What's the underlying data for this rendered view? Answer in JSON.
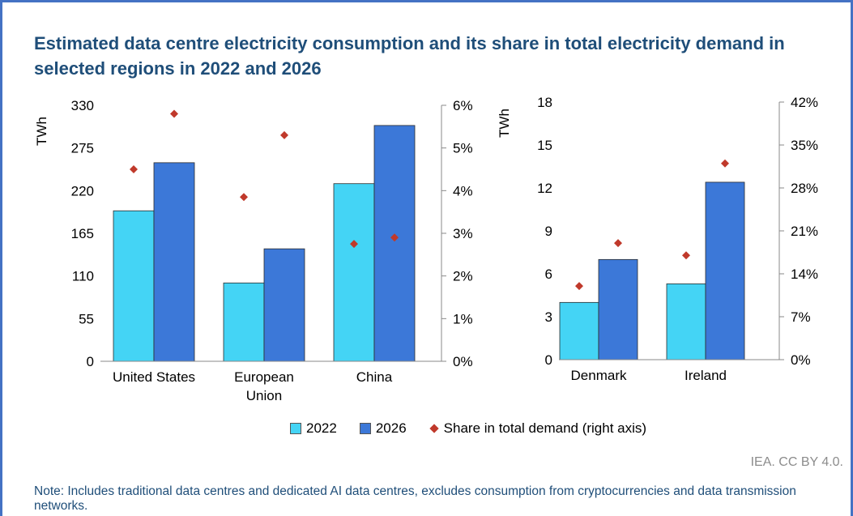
{
  "title": "Estimated data centre electricity consumption and its share in total electricity demand in selected regions in 2022 and 2026",
  "colors": {
    "y2022": "#44d4f5",
    "y2026": "#3c78d8",
    "share": "#c0392b",
    "title": "#1f4e79",
    "frame": "#4472c4"
  },
  "legend": {
    "item_2022": "2022",
    "item_2026": "2026",
    "item_share": "Share in total demand (right axis)"
  },
  "source": "IEA. CC BY 4.0.",
  "note": "Note: Includes traditional data centres and dedicated AI data centres, excludes consumption from cryptocurrencies and data transmission networks.",
  "chart_data": [
    {
      "type": "bar",
      "categories": [
        "United States",
        "European Union",
        "China"
      ],
      "category_lines": [
        [
          "United States"
        ],
        [
          "European",
          "Union"
        ],
        [
          "China"
        ]
      ],
      "series": [
        {
          "name": "2022",
          "values": [
            194,
            101,
            229
          ]
        },
        {
          "name": "2026",
          "values": [
            256,
            145,
            304
          ]
        }
      ],
      "share_series": {
        "name": "Share in total demand (right axis)",
        "values": [
          0.045,
          0.0385,
          0.0275
        ],
        "values_2026": [
          0.058,
          0.053,
          0.029
        ]
      },
      "ylabel": "TWh",
      "ylim": [
        0,
        330
      ],
      "yticks": [
        0,
        55,
        110,
        165,
        220,
        275,
        330
      ],
      "y2lim": [
        0,
        0.06
      ],
      "y2ticks": [
        "0%",
        "1%",
        "2%",
        "3%",
        "4%",
        "5%",
        "6%"
      ],
      "grid": false
    },
    {
      "type": "bar",
      "categories": [
        "Denmark",
        "Ireland"
      ],
      "category_lines": [
        [
          "Denmark"
        ],
        [
          "Ireland"
        ]
      ],
      "series": [
        {
          "name": "2022",
          "values": [
            4.0,
            5.3
          ]
        },
        {
          "name": "2026",
          "values": [
            7.0,
            12.4
          ]
        }
      ],
      "share_series": {
        "name": "Share in total demand (right axis)",
        "values": [
          0.12,
          0.17
        ],
        "values_2026": [
          0.19,
          0.32
        ]
      },
      "ylabel": "TWh",
      "ylim": [
        0,
        18
      ],
      "yticks": [
        0,
        3,
        6,
        9,
        12,
        15,
        18
      ],
      "y2lim": [
        0,
        0.42
      ],
      "y2ticks": [
        "0%",
        "7%",
        "14%",
        "21%",
        "28%",
        "35%",
        "42%"
      ],
      "grid": false
    }
  ]
}
